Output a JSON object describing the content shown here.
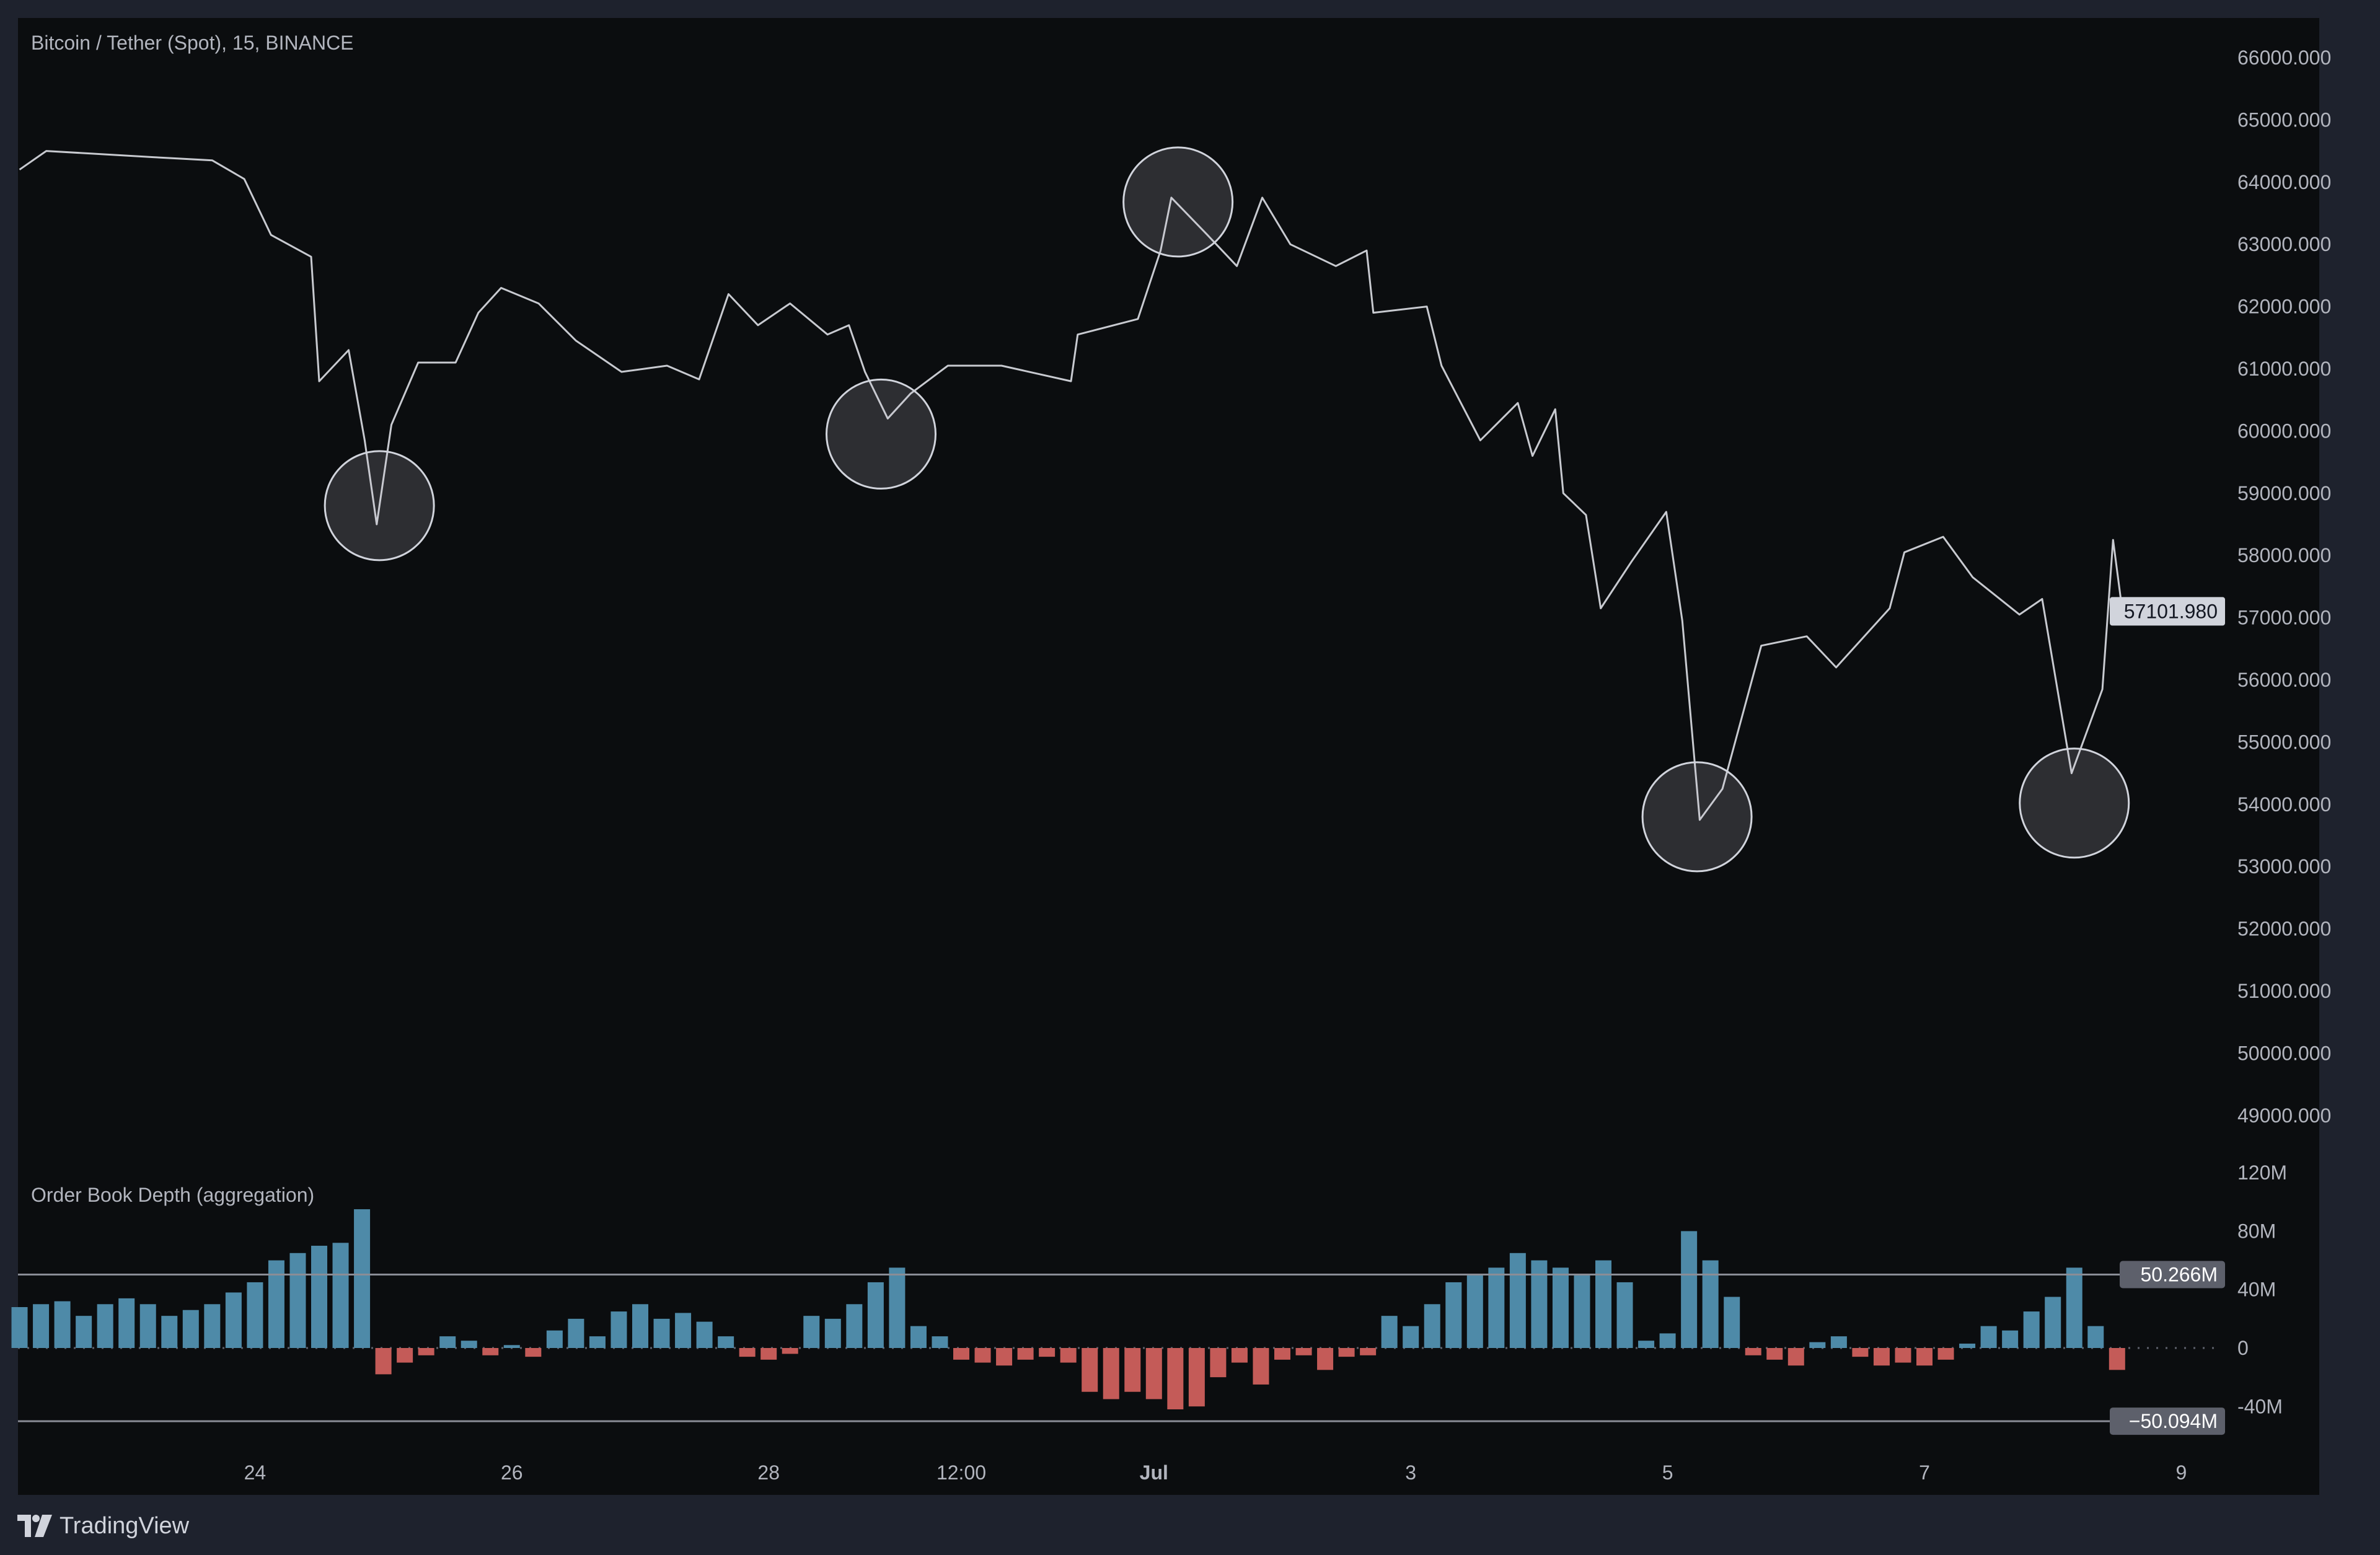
{
  "header": {
    "symbol_title": "Bitcoin / Tether (Spot), 15, BINANCE"
  },
  "indicator": {
    "title": "Order Book Depth (aggregation)"
  },
  "footer": {
    "brand": "TradingView"
  },
  "colors": {
    "background": "#0b0d0f",
    "frame": "#1e222d",
    "price_line": "#c8cad0",
    "depth_positive": "#4e8aa8",
    "depth_negative": "#c45b58",
    "badge": "#5d606b",
    "price_badge": "#d1d4dc"
  },
  "chart_data": [
    {
      "type": "line",
      "title": "Bitcoin / Tether (Spot), 15, BINANCE",
      "ylim": [
        48500,
        66300
      ],
      "y_ticks": [
        "66000.000",
        "65000.000",
        "64000.000",
        "63000.000",
        "62000.000",
        "61000.000",
        "60000.000",
        "59000.000",
        "58000.000",
        "57000.000",
        "56000.000",
        "55000.000",
        "54000.000",
        "53000.000",
        "52000.000",
        "51000.000",
        "50000.000",
        "49000.000"
      ],
      "x_ticks": [
        {
          "label": "24",
          "time": "Jun 24 00:00"
        },
        {
          "label": "26",
          "time": "Jun 26 00:00"
        },
        {
          "label": "28",
          "time": "Jun 28 00:00"
        },
        {
          "label": "12:00",
          "time": "Jun 29 12:00"
        },
        {
          "label": "Jul",
          "time": "Jul 1 00:00"
        },
        {
          "label": "3",
          "time": "Jul 3 00:00"
        },
        {
          "label": "5",
          "time": "Jul 5 00:00"
        },
        {
          "label": "7",
          "time": "Jul 7 00:00"
        },
        {
          "label": "9",
          "time": "Jul 9 00:00"
        }
      ],
      "last_price": "57101.980",
      "grid": false,
      "series": [
        {
          "values": [
            [
              "Jun 22 04:00",
              64200
            ],
            [
              "Jun 22 09:00",
              64500
            ],
            [
              "Jun 23 05:00",
              64400
            ],
            [
              "Jun 23 16:00",
              64350
            ],
            [
              "Jun 23 22:00",
              64050
            ],
            [
              "Jun 24 03:00",
              63150
            ],
            [
              "Jun 24 10:30",
              62800
            ],
            [
              "Jun 24 12:00",
              60800
            ],
            [
              "Jun 24 17:30",
              61300
            ],
            [
              "Jun 24 20:30",
              59850
            ],
            [
              "Jun 24 22:45",
              58500
            ],
            [
              "Jun 25 01:30",
              60100
            ],
            [
              "Jun 25 06:30",
              61100
            ],
            [
              "Jun 25 13:30",
              61100
            ],
            [
              "Jun 25 17:45",
              61900
            ],
            [
              "Jun 25 22:00",
              62300
            ],
            [
              "Jun 26 05:00",
              62050
            ],
            [
              "Jun 26 12:00",
              61450
            ],
            [
              "Jun 26 20:30",
              60950
            ],
            [
              "Jun 27 05:00",
              61050
            ],
            [
              "Jun 27 11:00",
              60830
            ],
            [
              "Jun 27 16:30",
              62200
            ],
            [
              "Jun 27 22:00",
              61700
            ],
            [
              "Jun 28 04:00",
              62050
            ],
            [
              "Jun 28 11:00",
              61550
            ],
            [
              "Jun 28 15:00",
              61700
            ],
            [
              "Jun 28 18:00",
              60950
            ],
            [
              "Jun 28 22:15",
              60200
            ],
            [
              "Jun 29 02:30",
              60600
            ],
            [
              "Jun 29 09:30",
              61050
            ],
            [
              "Jun 29 19:30",
              61050
            ],
            [
              "Jun 30 08:30",
              60800
            ],
            [
              "Jun 30 09:45",
              61550
            ],
            [
              "Jun 30 21:00",
              61800
            ],
            [
              "Jul 1 01:15",
              62900
            ],
            [
              "Jul 1 03:15",
              63750
            ],
            [
              "Jul 1 10:00",
              63150
            ],
            [
              "Jul 1 15:30",
              62650
            ],
            [
              "Jul 1 20:15",
              63750
            ],
            [
              "Jul 2 01:30",
              63000
            ],
            [
              "Jul 2 10:00",
              62650
            ],
            [
              "Jul 2 15:45",
              62900
            ],
            [
              "Jul 2 17:00",
              61900
            ],
            [
              "Jul 3 03:00",
              62000
            ],
            [
              "Jul 3 05:45",
              61050
            ],
            [
              "Jul 3 13:00",
              59850
            ],
            [
              "Jul 3 20:00",
              60450
            ],
            [
              "Jul 3 22:45",
              59600
            ],
            [
              "Jul 4 03:00",
              60350
            ],
            [
              "Jul 4 04:30",
              59000
            ],
            [
              "Jul 4 08:45",
              58650
            ],
            [
              "Jul 4 11:30",
              57150
            ],
            [
              "Jul 4 17:15",
              57900
            ],
            [
              "Jul 4 23:45",
              58700
            ],
            [
              "Jul 5 02:45",
              56950
            ],
            [
              "Jul 5 06:00",
              53750
            ],
            [
              "Jul 5 10:15",
              54250
            ],
            [
              "Jul 5 17:30",
              56550
            ],
            [
              "Jul 6 02:00",
              56700
            ],
            [
              "Jul 6 07:30",
              56200
            ],
            [
              "Jul 6 17:30",
              57150
            ],
            [
              "Jul 6 20:15",
              58050
            ],
            [
              "Jul 7 03:30",
              58300
            ],
            [
              "Jul 7 09:00",
              57650
            ],
            [
              "Jul 7 17:45",
              57050
            ],
            [
              "Jul 7 22:00",
              57300
            ],
            [
              "Jul 8 03:30",
              54500
            ],
            [
              "Jul 8 09:15",
              55850
            ],
            [
              "Jul 8 11:15",
              58250
            ],
            [
              "Jul 8 13:00",
              57101.98
            ]
          ]
        }
      ],
      "annotations": [
        {
          "shape": "circle",
          "time": "Jun 24 23:15",
          "price": 58800
        },
        {
          "shape": "circle",
          "time": "Jun 28 21:00",
          "price": 59950
        },
        {
          "shape": "circle",
          "time": "Jul 1 04:30",
          "price": 63680
        },
        {
          "shape": "circle",
          "time": "Jul 5 05:30",
          "price": 53800
        },
        {
          "shape": "circle",
          "time": "Jul 8 04:00",
          "price": 54020
        }
      ]
    },
    {
      "type": "bar",
      "title": "Order Book Depth (aggregation)",
      "unit": "M",
      "ylim": [
        -60,
        125
      ],
      "y_ticks": [
        {
          "label": "120M",
          "value": 120
        },
        {
          "label": "80M",
          "value": 80
        },
        {
          "label": "40M",
          "value": 40
        },
        {
          "label": "0",
          "value": 0
        },
        {
          "label": "-40M",
          "value": -40
        }
      ],
      "levels": [
        {
          "label": "50.266M",
          "value": 50.266
        },
        {
          "label": "−50.094M",
          "value": -50.094
        }
      ],
      "values": [
        [
          "Jun 22 04:00",
          28
        ],
        [
          "Jun 22 08:00",
          30
        ],
        [
          "Jun 22 12:00",
          32
        ],
        [
          "Jun 22 16:00",
          22
        ],
        [
          "Jun 22 20:00",
          30
        ],
        [
          "Jun 23 00:00",
          34
        ],
        [
          "Jun 23 04:00",
          30
        ],
        [
          "Jun 23 08:00",
          22
        ],
        [
          "Jun 23 12:00",
          26
        ],
        [
          "Jun 23 16:00",
          30
        ],
        [
          "Jun 23 20:00",
          38
        ],
        [
          "Jun 24 00:00",
          45
        ],
        [
          "Jun 24 04:00",
          60
        ],
        [
          "Jun 24 08:00",
          65
        ],
        [
          "Jun 24 12:00",
          70
        ],
        [
          "Jun 24 16:00",
          72
        ],
        [
          "Jun 24 20:00",
          95
        ],
        [
          "Jun 25 00:00",
          -18
        ],
        [
          "Jun 25 04:00",
          -10
        ],
        [
          "Jun 25 08:00",
          -5
        ],
        [
          "Jun 25 12:00",
          8
        ],
        [
          "Jun 25 16:00",
          5
        ],
        [
          "Jun 25 20:00",
          -5
        ],
        [
          "Jun 26 00:00",
          2
        ],
        [
          "Jun 26 04:00",
          -6
        ],
        [
          "Jun 26 08:00",
          12
        ],
        [
          "Jun 26 12:00",
          20
        ],
        [
          "Jun 26 16:00",
          8
        ],
        [
          "Jun 26 20:00",
          25
        ],
        [
          "Jun 27 00:00",
          30
        ],
        [
          "Jun 27 04:00",
          20
        ],
        [
          "Jun 27 08:00",
          24
        ],
        [
          "Jun 27 12:00",
          18
        ],
        [
          "Jun 27 16:00",
          8
        ],
        [
          "Jun 27 20:00",
          -6
        ],
        [
          "Jun 28 00:00",
          -8
        ],
        [
          "Jun 28 04:00",
          -4
        ],
        [
          "Jun 28 08:00",
          22
        ],
        [
          "Jun 28 12:00",
          20
        ],
        [
          "Jun 28 16:00",
          30
        ],
        [
          "Jun 28 20:00",
          45
        ],
        [
          "Jun 29 00:00",
          55
        ],
        [
          "Jun 29 04:00",
          15
        ],
        [
          "Jun 29 08:00",
          8
        ],
        [
          "Jun 29 12:00",
          -8
        ],
        [
          "Jun 29 16:00",
          -10
        ],
        [
          "Jun 29 20:00",
          -12
        ],
        [
          "Jun 30 00:00",
          -8
        ],
        [
          "Jun 30 04:00",
          -6
        ],
        [
          "Jun 30 08:00",
          -10
        ],
        [
          "Jun 30 12:00",
          -30
        ],
        [
          "Jun 30 16:00",
          -35
        ],
        [
          "Jun 30 20:00",
          -30
        ],
        [
          "Jul 1 00:00",
          -35
        ],
        [
          "Jul 1 04:00",
          -42
        ],
        [
          "Jul 1 08:00",
          -40
        ],
        [
          "Jul 1 12:00",
          -20
        ],
        [
          "Jul 1 16:00",
          -10
        ],
        [
          "Jul 1 20:00",
          -25
        ],
        [
          "Jul 2 00:00",
          -8
        ],
        [
          "Jul 2 04:00",
          -5
        ],
        [
          "Jul 2 08:00",
          -15
        ],
        [
          "Jul 2 12:00",
          -6
        ],
        [
          "Jul 2 16:00",
          -5
        ],
        [
          "Jul 2 20:00",
          22
        ],
        [
          "Jul 3 00:00",
          15
        ],
        [
          "Jul 3 04:00",
          30
        ],
        [
          "Jul 3 08:00",
          45
        ],
        [
          "Jul 3 12:00",
          50
        ],
        [
          "Jul 3 16:00",
          55
        ],
        [
          "Jul 3 20:00",
          65
        ],
        [
          "Jul 4 00:00",
          60
        ],
        [
          "Jul 4 04:00",
          55
        ],
        [
          "Jul 4 08:00",
          50
        ],
        [
          "Jul 4 12:00",
          60
        ],
        [
          "Jul 4 16:00",
          45
        ],
        [
          "Jul 4 20:00",
          5
        ],
        [
          "Jul 5 00:00",
          10
        ],
        [
          "Jul 5 04:00",
          80
        ],
        [
          "Jul 5 08:00",
          60
        ],
        [
          "Jul 5 12:00",
          35
        ],
        [
          "Jul 5 16:00",
          -5
        ],
        [
          "Jul 5 20:00",
          -8
        ],
        [
          "Jul 6 00:00",
          -12
        ],
        [
          "Jul 6 04:00",
          4
        ],
        [
          "Jul 6 08:00",
          8
        ],
        [
          "Jul 6 12:00",
          -6
        ],
        [
          "Jul 6 16:00",
          -12
        ],
        [
          "Jul 6 20:00",
          -10
        ],
        [
          "Jul 7 00:00",
          -12
        ],
        [
          "Jul 7 04:00",
          -8
        ],
        [
          "Jul 7 08:00",
          3
        ],
        [
          "Jul 7 12:00",
          15
        ],
        [
          "Jul 7 16:00",
          12
        ],
        [
          "Jul 7 20:00",
          25
        ],
        [
          "Jul 8 00:00",
          35
        ],
        [
          "Jul 8 04:00",
          55
        ],
        [
          "Jul 8 08:00",
          15
        ],
        [
          "Jul 8 12:00",
          -15
        ]
      ]
    }
  ]
}
